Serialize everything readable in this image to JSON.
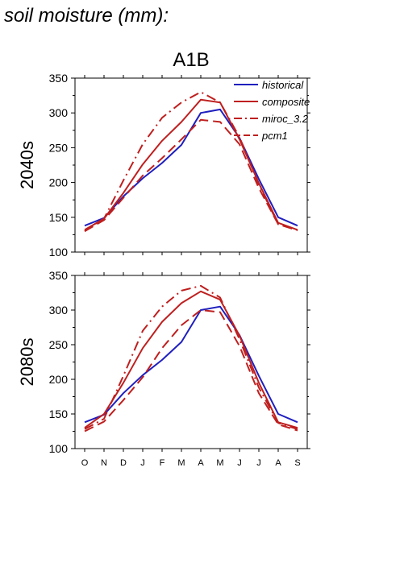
{
  "figure": {
    "title": "soil moisture (mm):",
    "scenario": "A1B"
  },
  "colors": {
    "historical": "#1f1fbf",
    "projection": "#bf1f1f",
    "axis": "#000000"
  },
  "chart_data": [
    {
      "type": "line",
      "panel_label": "2040s",
      "categories": [
        "O",
        "N",
        "D",
        "J",
        "F",
        "M",
        "A",
        "M",
        "J",
        "J",
        "A",
        "S"
      ],
      "ylim": [
        100,
        350
      ],
      "yticks": [
        100,
        150,
        200,
        250,
        300,
        350
      ],
      "grid": false,
      "legend_position": "top-right",
      "series": [
        {
          "name": "historical",
          "style": "solid",
          "color": "#1f1fbf",
          "values": [
            138,
            149,
            180,
            206,
            228,
            254,
            300,
            305,
            264,
            205,
            150,
            138
          ]
        },
        {
          "name": "composite",
          "style": "solid",
          "color": "#bf1f1f",
          "values": [
            132,
            148,
            185,
            226,
            260,
            287,
            319,
            315,
            262,
            199,
            142,
            132
          ]
        },
        {
          "name": "miroc_3.2",
          "style": "dashdot",
          "color": "#bf1f1f",
          "values": [
            130,
            148,
            203,
            255,
            293,
            315,
            330,
            315,
            265,
            197,
            140,
            132
          ]
        },
        {
          "name": "pcm1",
          "style": "dashed",
          "color": "#bf1f1f",
          "values": [
            130,
            146,
            178,
            210,
            235,
            262,
            290,
            287,
            255,
            192,
            140,
            131
          ]
        }
      ]
    },
    {
      "type": "line",
      "panel_label": "2080s",
      "categories": [
        "O",
        "N",
        "D",
        "J",
        "F",
        "M",
        "A",
        "M",
        "J",
        "J",
        "A",
        "S"
      ],
      "ylim": [
        100,
        350
      ],
      "yticks": [
        100,
        150,
        200,
        250,
        300,
        350
      ],
      "grid": false,
      "series": [
        {
          "name": "historical",
          "style": "solid",
          "color": "#1f1fbf",
          "values": [
            138,
            149,
            180,
            206,
            228,
            254,
            300,
            305,
            264,
            205,
            150,
            138
          ]
        },
        {
          "name": "composite",
          "style": "solid",
          "color": "#bf1f1f",
          "values": [
            130,
            150,
            195,
            245,
            283,
            310,
            327,
            315,
            263,
            195,
            138,
            130
          ]
        },
        {
          "name": "miroc_3.2",
          "style": "dashdot",
          "color": "#bf1f1f",
          "values": [
            128,
            143,
            205,
            270,
            305,
            328,
            335,
            318,
            258,
            188,
            137,
            128
          ]
        },
        {
          "name": "pcm1",
          "style": "dashed",
          "color": "#bf1f1f",
          "values": [
            125,
            139,
            170,
            203,
            245,
            278,
            300,
            297,
            248,
            180,
            135,
            126
          ]
        }
      ]
    }
  ]
}
